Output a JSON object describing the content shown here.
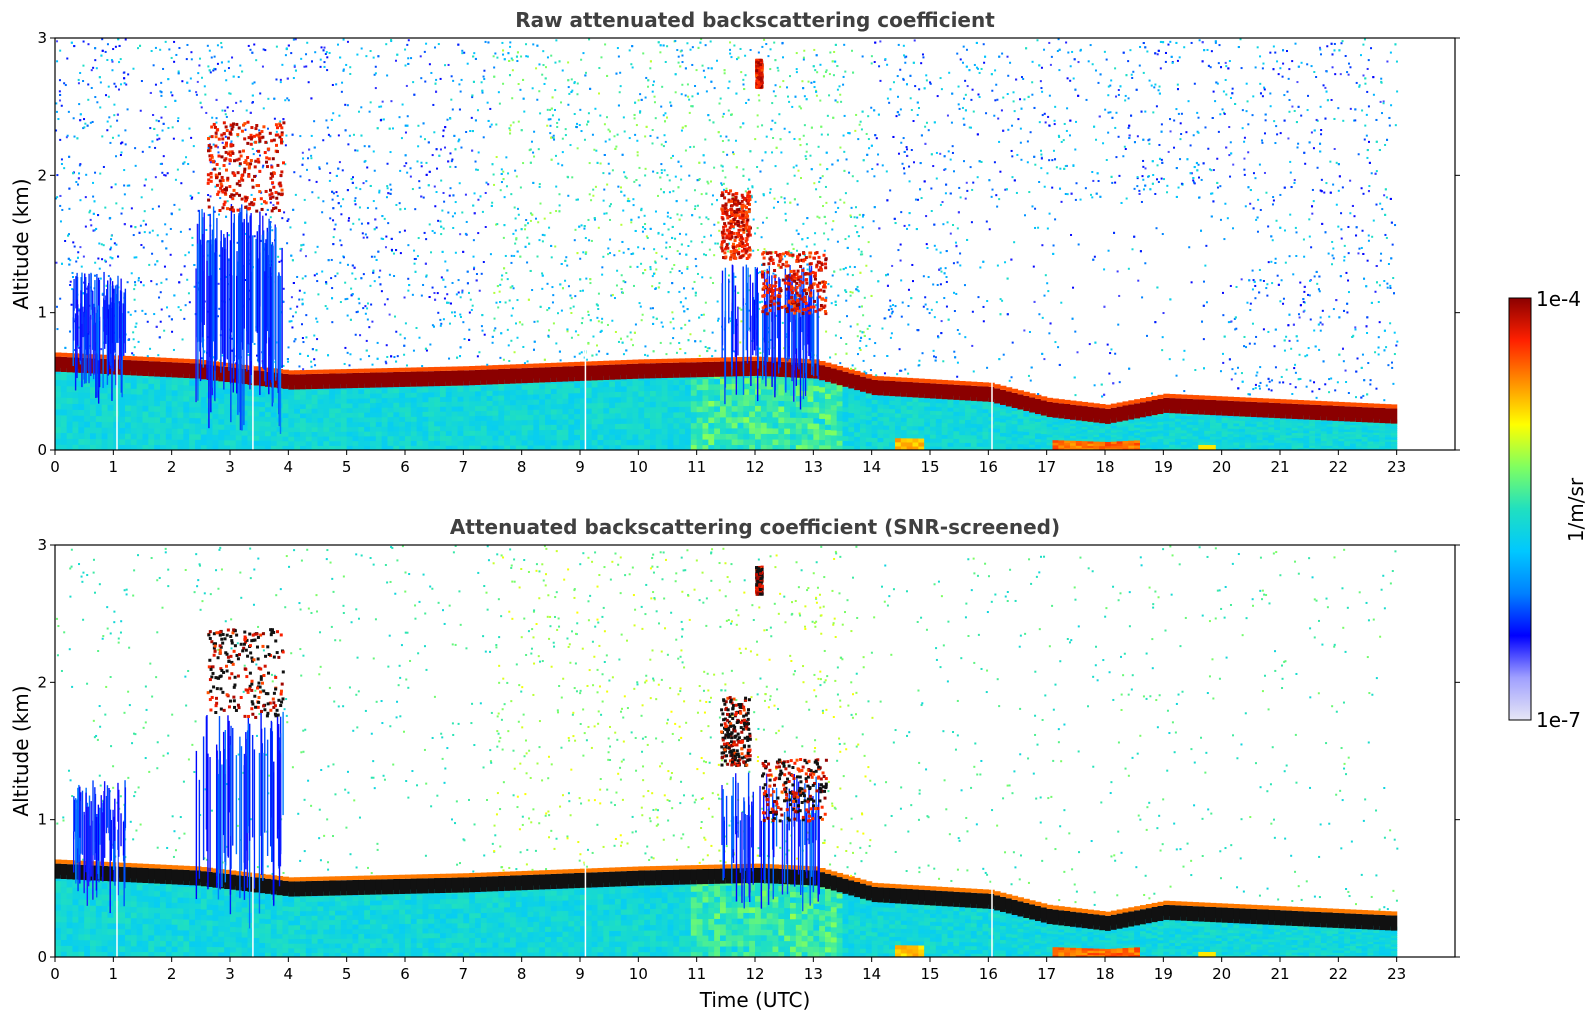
{
  "chart_data": [
    {
      "type": "heatmap",
      "title": "Raw attenuated backscattering coefficient",
      "ylabel": "Altitude (km)",
      "xlim": [
        0,
        24
      ],
      "ylim": [
        0,
        3
      ],
      "x_ticks": [
        "0",
        "1",
        "2",
        "3",
        "4",
        "5",
        "6",
        "7",
        "8",
        "9",
        "10",
        "11",
        "12",
        "13",
        "14",
        "15",
        "16",
        "17",
        "18",
        "19",
        "20",
        "21",
        "22",
        "23"
      ],
      "y_ticks": [
        "0",
        "1",
        "2",
        "3"
      ],
      "data_end_hour": 23,
      "mode": "raw",
      "boundary_layer_top_km": [
        {
          "hour": 0,
          "km": 0.6
        },
        {
          "hour": 2.4,
          "km": 0.55
        },
        {
          "hour": 4,
          "km": 0.47
        },
        {
          "hour": 7,
          "km": 0.5
        },
        {
          "hour": 10,
          "km": 0.55
        },
        {
          "hour": 12,
          "km": 0.57
        },
        {
          "hour": 13,
          "km": 0.55
        },
        {
          "hour": 14,
          "km": 0.43
        },
        {
          "hour": 16,
          "km": 0.38
        },
        {
          "hour": 17,
          "km": 0.27
        },
        {
          "hour": 18,
          "km": 0.22
        },
        {
          "hour": 19,
          "km": 0.3
        },
        {
          "hour": 20,
          "km": 0.28
        },
        {
          "hour": 23,
          "km": 0.22
        }
      ],
      "cloud_layers": [
        {
          "start_hour": 2.6,
          "end_hour": 3.9,
          "base_km": 1.75,
          "top_km": 2.4
        },
        {
          "start_hour": 11.4,
          "end_hour": 11.9,
          "base_km": 1.4,
          "top_km": 1.9
        },
        {
          "start_hour": 12.1,
          "end_hour": 13.2,
          "base_km": 1.0,
          "top_km": 1.45
        },
        {
          "start_hour": 12.0,
          "end_hour": 12.1,
          "base_km": 2.65,
          "top_km": 2.85
        }
      ]
    },
    {
      "type": "heatmap",
      "title": "Attenuated backscattering coefficient (SNR-screened)",
      "xlabel": "Time (UTC)",
      "ylabel": "Altitude (km)",
      "xlim": [
        0,
        24
      ],
      "ylim": [
        0,
        3
      ],
      "x_ticks": [
        "0",
        "1",
        "2",
        "3",
        "4",
        "5",
        "6",
        "7",
        "8",
        "9",
        "10",
        "11",
        "12",
        "13",
        "14",
        "15",
        "16",
        "17",
        "18",
        "19",
        "20",
        "21",
        "22",
        "23"
      ],
      "y_ticks": [
        "0",
        "1",
        "2",
        "3"
      ],
      "data_end_hour": 23,
      "mode": "screened"
    }
  ],
  "colorbar": {
    "label": "1/m/sr",
    "max_label": "1e-4",
    "min_label": "1e-7",
    "vmin": 1e-07,
    "vmax": 0.0001,
    "scale": "log",
    "colormap": "jet",
    "colors": [
      "#e6e6f5",
      "#a0a0ff",
      "#0000ff",
      "#0080ff",
      "#00c8ff",
      "#20e0c0",
      "#80ff60",
      "#ffff00",
      "#ff9000",
      "#ff2000",
      "#8b0000"
    ]
  }
}
